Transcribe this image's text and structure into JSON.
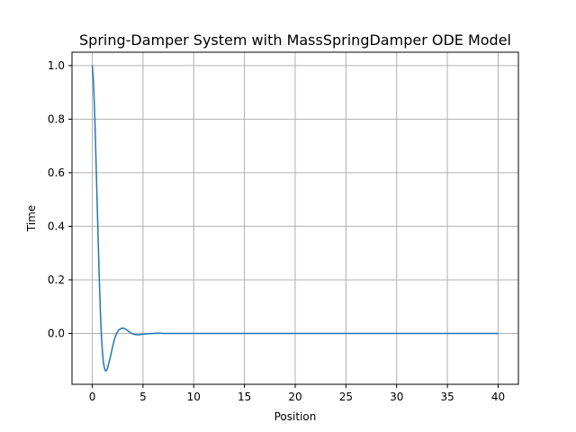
{
  "chart_data": {
    "type": "line",
    "title": "Spring-Damper System with MassSpringDamper ODE Model",
    "xlabel": "Position",
    "ylabel": "Time",
    "xlim": [
      -2,
      42
    ],
    "ylim": [
      -0.19,
      1.05
    ],
    "grid": true,
    "x_ticks": [
      0,
      5,
      10,
      15,
      20,
      25,
      30,
      35,
      40
    ],
    "y_ticks": [
      0.0,
      0.2,
      0.4,
      0.6,
      0.8,
      1.0
    ],
    "x_tick_labels": [
      "0",
      "5",
      "10",
      "15",
      "20",
      "25",
      "30",
      "35",
      "40"
    ],
    "y_tick_labels": [
      "0.0",
      "0.2",
      "0.4",
      "0.6",
      "0.8",
      "1.0"
    ],
    "series": [
      {
        "color": "#1f77b4",
        "x": [
          0,
          0.1,
          0.2,
          0.3,
          0.4,
          0.5,
          0.6,
          0.7,
          0.8,
          0.9,
          1.0,
          1.1,
          1.2,
          1.3,
          1.4,
          1.5,
          1.6,
          1.8,
          2.0,
          2.2,
          2.4,
          2.6,
          2.8,
          3.0,
          3.2,
          3.4,
          3.6,
          3.8,
          4.0,
          4.2,
          4.4,
          4.6,
          4.8,
          5.0,
          5.5,
          6.0,
          6.5,
          7.0,
          8.0,
          10.0,
          15.0,
          20.0,
          25.0,
          30.0,
          35.0,
          40.0
        ],
        "y": [
          1.0,
          0.95,
          0.86,
          0.74,
          0.6,
          0.46,
          0.32,
          0.19,
          0.08,
          -0.01,
          -0.07,
          -0.11,
          -0.13,
          -0.14,
          -0.138,
          -0.13,
          -0.115,
          -0.085,
          -0.05,
          -0.02,
          0.0,
          0.012,
          0.018,
          0.02,
          0.018,
          0.013,
          0.007,
          0.002,
          -0.002,
          -0.004,
          -0.005,
          -0.005,
          -0.004,
          -0.003,
          -0.001,
          0.0,
          0.001,
          0.0,
          0.0,
          0.0,
          0.0,
          0.0,
          0.0,
          0.0,
          0.0,
          0.0
        ]
      }
    ]
  }
}
